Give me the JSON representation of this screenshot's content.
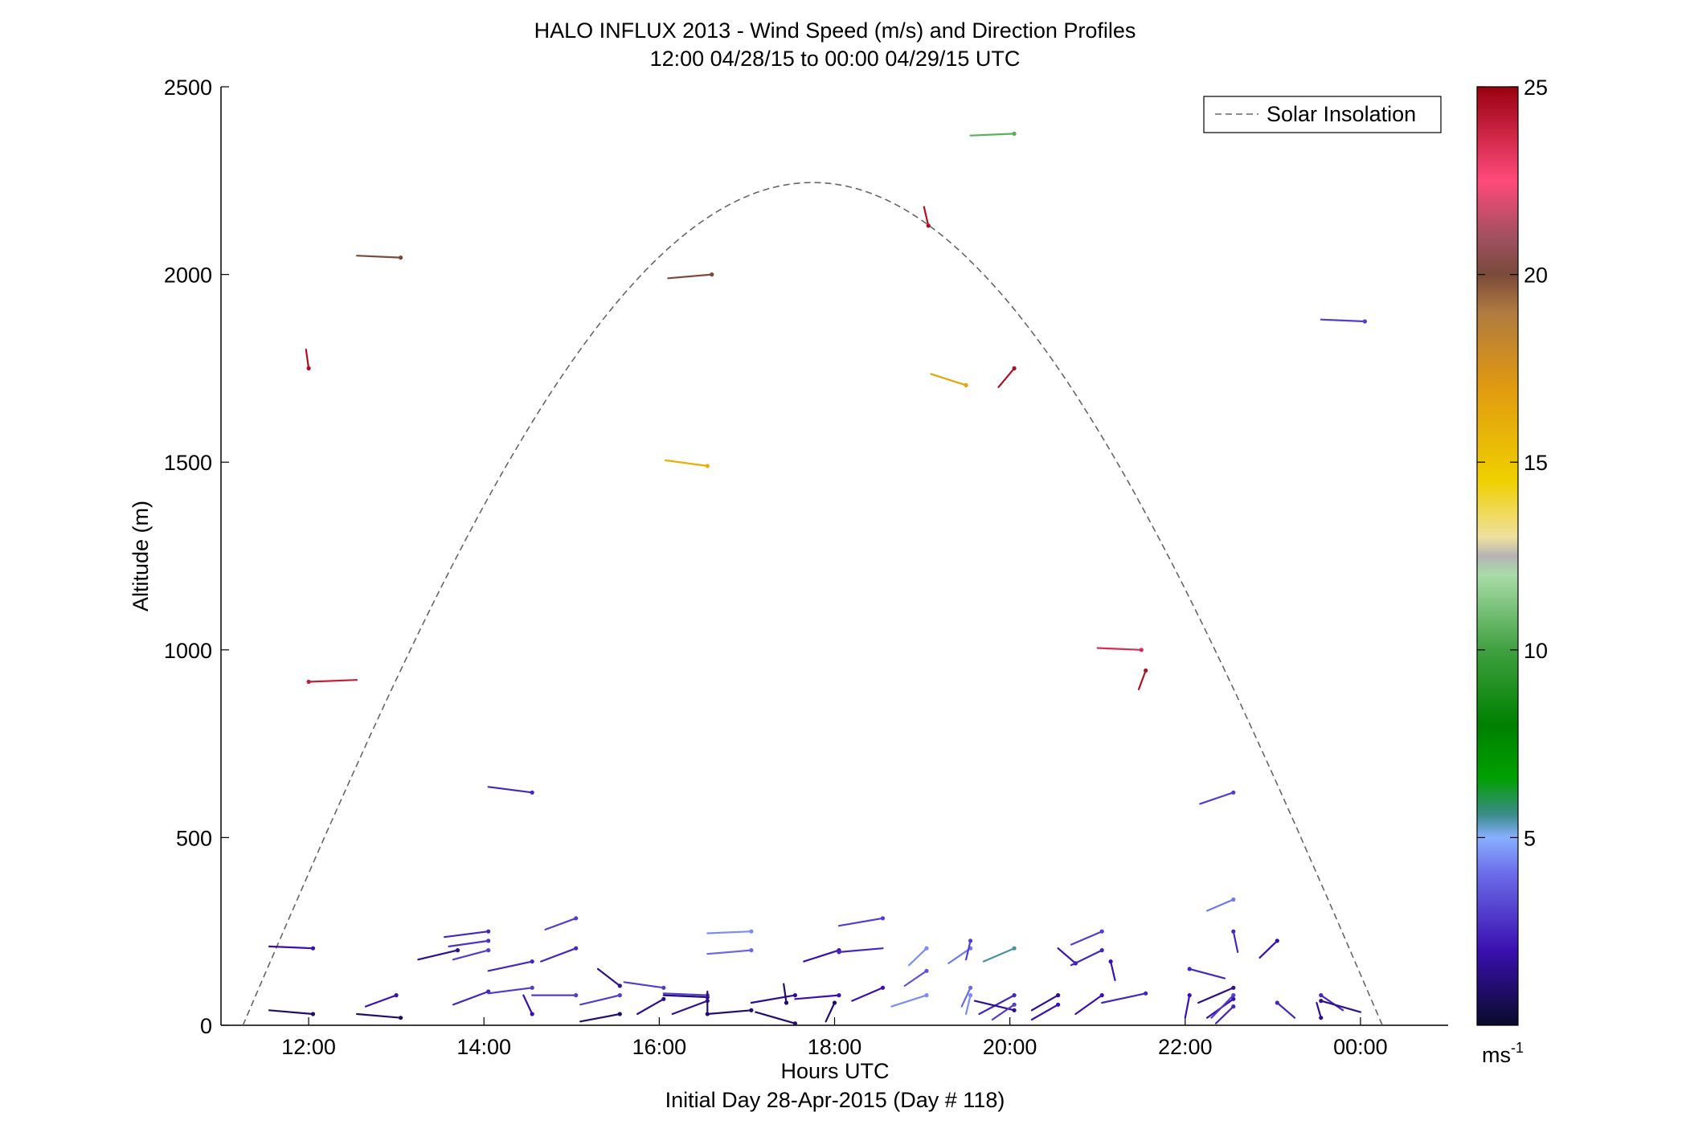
{
  "chart_data": {
    "type": "vector-profile",
    "title": "HALO INFLUX 2013 - Wind Speed (m/s) and Direction Profiles",
    "subtitle": "12:00 04/28/15 to 00:00 04/29/15  UTC",
    "xlabel": "Hours UTC",
    "xlabel2": "Initial Day 28-Apr-2015 (Day # 118)",
    "ylabel": "Altitude (m)",
    "xlim": [
      11.0,
      25.0
    ],
    "ylim": [
      0,
      2500
    ],
    "x_ticks": [
      {
        "value": 12,
        "label": "12:00"
      },
      {
        "value": 14,
        "label": "14:00"
      },
      {
        "value": 16,
        "label": "16:00"
      },
      {
        "value": 18,
        "label": "18:00"
      },
      {
        "value": 20,
        "label": "20:00"
      },
      {
        "value": 22,
        "label": "22:00"
      },
      {
        "value": 24,
        "label": "00:00"
      }
    ],
    "y_ticks": [
      {
        "value": 0,
        "label": "0"
      },
      {
        "value": 500,
        "label": "500"
      },
      {
        "value": 1000,
        "label": "1000"
      },
      {
        "value": 1500,
        "label": "1500"
      },
      {
        "value": 2000,
        "label": "2000"
      },
      {
        "value": 2500,
        "label": "2500"
      }
    ],
    "legend": {
      "position": "top-right",
      "entries": [
        {
          "label": "Solar Insolation",
          "style": "dashed",
          "color": "#666666"
        }
      ]
    },
    "solar_curve": {
      "start_hour": 11.25,
      "end_hour": 24.25,
      "peak_hour": 17.75,
      "peak_altitude": 2245,
      "color": "#666666"
    },
    "colorbar": {
      "range": [
        0,
        25
      ],
      "ticks": [
        {
          "value": 5,
          "label": "5"
        },
        {
          "value": 10,
          "label": "10"
        },
        {
          "value": 15,
          "label": "15"
        },
        {
          "value": 20,
          "label": "20"
        },
        {
          "value": 25,
          "label": "25"
        }
      ],
      "unit_label": "ms",
      "unit_exponent": "-1",
      "stops": [
        {
          "value": 0,
          "color": "#0a0a2a"
        },
        {
          "value": 2,
          "color": "#3a10b0"
        },
        {
          "value": 4,
          "color": "#6a6ae8"
        },
        {
          "value": 5,
          "color": "#88b0ff"
        },
        {
          "value": 5.6,
          "color": "#3c8c8c"
        },
        {
          "value": 6.6,
          "color": "#00a000"
        },
        {
          "value": 8,
          "color": "#008000"
        },
        {
          "value": 10,
          "color": "#40a040"
        },
        {
          "value": 12,
          "color": "#a8dca8"
        },
        {
          "value": 12.5,
          "color": "#b4b4b4"
        },
        {
          "value": 13,
          "color": "#f0e0a0"
        },
        {
          "value": 14.5,
          "color": "#f0d000"
        },
        {
          "value": 17,
          "color": "#e09a10"
        },
        {
          "value": 19,
          "color": "#b07a40"
        },
        {
          "value": 20,
          "color": "#7a4a3a"
        },
        {
          "value": 21,
          "color": "#a05060"
        },
        {
          "value": 22.5,
          "color": "#ff4a7a"
        },
        {
          "value": 25,
          "color": "#9a0010"
        }
      ]
    },
    "vectors": [
      {
        "t": 12.0,
        "z": 915,
        "dt": 0.55,
        "dz": 5,
        "speed": 24
      },
      {
        "t": 12.0,
        "z": 1750,
        "dt": -0.03,
        "dz": 50,
        "speed": 24.5
      },
      {
        "t": 13.05,
        "z": 2045,
        "dt": -0.5,
        "dz": 5,
        "speed": 20
      },
      {
        "t": 16.6,
        "z": 2000,
        "dt": -0.5,
        "dz": -10,
        "speed": 20
      },
      {
        "t": 16.55,
        "z": 1490,
        "dt": -0.48,
        "dz": 15,
        "speed": 16
      },
      {
        "t": 14.55,
        "z": 620,
        "dt": -0.5,
        "dz": 15,
        "speed": 2.5
      },
      {
        "t": 19.07,
        "z": 2130,
        "dt": -0.05,
        "dz": 50,
        "speed": 24.5
      },
      {
        "t": 19.5,
        "z": 1705,
        "dt": -0.4,
        "dz": 30,
        "speed": 16.5
      },
      {
        "t": 20.05,
        "z": 1750,
        "dt": -0.18,
        "dz": -50,
        "speed": 24.5
      },
      {
        "t": 20.05,
        "z": 2375,
        "dt": -0.5,
        "dz": -5,
        "speed": 10.5
      },
      {
        "t": 21.5,
        "z": 1000,
        "dt": -0.5,
        "dz": 5,
        "speed": 23.5
      },
      {
        "t": 21.55,
        "z": 945,
        "dt": -0.08,
        "dz": -50,
        "speed": 24.5
      },
      {
        "t": 22.55,
        "z": 620,
        "dt": -0.38,
        "dz": -30,
        "speed": 3
      },
      {
        "t": 24.05,
        "z": 1875,
        "dt": -0.5,
        "dz": 5,
        "speed": 3
      },
      {
        "t": 22.55,
        "z": 335,
        "dt": -0.3,
        "dz": -30,
        "speed": 4.2
      },
      {
        "t": 12.05,
        "z": 205,
        "dt": -0.5,
        "dz": 5,
        "speed": 2
      },
      {
        "t": 12.05,
        "z": 30,
        "dt": -0.5,
        "dz": 10,
        "speed": 1
      },
      {
        "t": 13.0,
        "z": 80,
        "dt": -0.35,
        "dz": -30,
        "speed": 2
      },
      {
        "t": 13.05,
        "z": 20,
        "dt": -0.5,
        "dz": 10,
        "speed": 1
      },
      {
        "t": 13.7,
        "z": 200,
        "dt": -0.45,
        "dz": -25,
        "speed": 1.5
      },
      {
        "t": 14.05,
        "z": 250,
        "dt": -0.5,
        "dz": -15,
        "speed": 2.5
      },
      {
        "t": 14.05,
        "z": 225,
        "dt": -0.45,
        "dz": -15,
        "speed": 2.8
      },
      {
        "t": 14.05,
        "z": 200,
        "dt": -0.4,
        "dz": -25,
        "speed": 3
      },
      {
        "t": 14.05,
        "z": 90,
        "dt": -0.4,
        "dz": -35,
        "speed": 2.5
      },
      {
        "t": 14.55,
        "z": 170,
        "dt": -0.5,
        "dz": -25,
        "speed": 2.5
      },
      {
        "t": 14.55,
        "z": 100,
        "dt": -0.5,
        "dz": -15,
        "speed": 3
      },
      {
        "t": 14.55,
        "z": 30,
        "dt": -0.1,
        "dz": 50,
        "speed": 2
      },
      {
        "t": 15.05,
        "z": 285,
        "dt": -0.35,
        "dz": -30,
        "speed": 3
      },
      {
        "t": 15.05,
        "z": 205,
        "dt": -0.4,
        "dz": -35,
        "speed": 2.5
      },
      {
        "t": 15.05,
        "z": 80,
        "dt": -0.5,
        "dz": 0,
        "speed": 3
      },
      {
        "t": 15.55,
        "z": 105,
        "dt": -0.25,
        "dz": 45,
        "speed": 1.5
      },
      {
        "t": 15.55,
        "z": 80,
        "dt": -0.45,
        "dz": -25,
        "speed": 3
      },
      {
        "t": 15.55,
        "z": 30,
        "dt": -0.45,
        "dz": -20,
        "speed": 1
      },
      {
        "t": 16.05,
        "z": 100,
        "dt": -0.45,
        "dz": 15,
        "speed": 3
      },
      {
        "t": 16.05,
        "z": 70,
        "dt": -0.3,
        "dz": -40,
        "speed": 1.5
      },
      {
        "t": 16.55,
        "z": 75,
        "dt": -0.5,
        "dz": 5,
        "speed": 1.2
      },
      {
        "t": 16.55,
        "z": 80,
        "dt": -0.5,
        "dz": 5,
        "speed": 3
      },
      {
        "t": 16.55,
        "z": 65,
        "dt": -0.4,
        "dz": -35,
        "speed": 1.5
      },
      {
        "t": 16.55,
        "z": 30,
        "dt": 0,
        "dz": 60,
        "speed": 1.2
      },
      {
        "t": 17.05,
        "z": 250,
        "dt": -0.5,
        "dz": -5,
        "speed": 4.5
      },
      {
        "t": 17.05,
        "z": 200,
        "dt": -0.5,
        "dz": -10,
        "speed": 4
      },
      {
        "t": 17.05,
        "z": 40,
        "dt": -0.5,
        "dz": -10,
        "speed": 1
      },
      {
        "t": 17.55,
        "z": 80,
        "dt": -0.5,
        "dz": -20,
        "speed": 1.5
      },
      {
        "t": 17.55,
        "z": 5,
        "dt": -0.45,
        "dz": 30,
        "speed": 1
      },
      {
        "t": 17.45,
        "z": 60,
        "dt": -0.03,
        "dz": 50,
        "speed": 1
      },
      {
        "t": 18.05,
        "z": 200,
        "dt": -0.4,
        "dz": -30,
        "speed": 2
      },
      {
        "t": 18.05,
        "z": 195,
        "dt": 0.5,
        "dz": 10,
        "speed": 2.5
      },
      {
        "t": 18.05,
        "z": 80,
        "dt": -0.5,
        "dz": -10,
        "speed": 2
      },
      {
        "t": 18.0,
        "z": 60,
        "dt": -0.1,
        "dz": -50,
        "speed": 1
      },
      {
        "t": 18.55,
        "z": 285,
        "dt": -0.5,
        "dz": -20,
        "speed": 3
      },
      {
        "t": 18.55,
        "z": 100,
        "dt": -0.35,
        "dz": -35,
        "speed": 2
      },
      {
        "t": 19.05,
        "z": 205,
        "dt": -0.2,
        "dz": -45,
        "speed": 4.5
      },
      {
        "t": 19.05,
        "z": 145,
        "dt": -0.25,
        "dz": -40,
        "speed": 3.5
      },
      {
        "t": 19.05,
        "z": 80,
        "dt": -0.4,
        "dz": -30,
        "speed": 4.5
      },
      {
        "t": 19.55,
        "z": 205,
        "dt": -0.25,
        "dz": -40,
        "speed": 4.2
      },
      {
        "t": 19.55,
        "z": 225,
        "dt": -0.05,
        "dz": -50,
        "speed": 3
      },
      {
        "t": 19.55,
        "z": 100,
        "dt": -0.1,
        "dz": -50,
        "speed": 4
      },
      {
        "t": 19.55,
        "z": 80,
        "dt": -0.05,
        "dz": -50,
        "speed": 4.5
      },
      {
        "t": 20.05,
        "z": 205,
        "dt": -0.35,
        "dz": -35,
        "speed": 5.5
      },
      {
        "t": 20.05,
        "z": 80,
        "dt": -0.4,
        "dz": -50,
        "speed": 2.5
      },
      {
        "t": 20.05,
        "z": 40,
        "dt": -0.45,
        "dz": 25,
        "speed": 1.5
      },
      {
        "t": 20.05,
        "z": 55,
        "dt": -0.25,
        "dz": -40,
        "speed": 3
      },
      {
        "t": 20.55,
        "z": 80,
        "dt": -0.3,
        "dz": -40,
        "speed": 1.5
      },
      {
        "t": 20.55,
        "z": 55,
        "dt": -0.3,
        "dz": -40,
        "speed": 2
      },
      {
        "t": 20.75,
        "z": 165,
        "dt": -0.2,
        "dz": 40,
        "speed": 2
      },
      {
        "t": 21.05,
        "z": 250,
        "dt": -0.35,
        "dz": -35,
        "speed": 3
      },
      {
        "t": 21.05,
        "z": 200,
        "dt": -0.35,
        "dz": -40,
        "speed": 2.5
      },
      {
        "t": 21.05,
        "z": 80,
        "dt": -0.3,
        "dz": -50,
        "speed": 2
      },
      {
        "t": 21.15,
        "z": 170,
        "dt": 0.05,
        "dz": -50,
        "speed": 2
      },
      {
        "t": 21.55,
        "z": 85,
        "dt": -0.5,
        "dz": -25,
        "speed": 2.5
      },
      {
        "t": 22.05,
        "z": 80,
        "dt": -0.05,
        "dz": -60,
        "speed": 2
      },
      {
        "t": 22.05,
        "z": 150,
        "dt": 0.4,
        "dz": -25,
        "speed": 2.5
      },
      {
        "t": 22.55,
        "z": 250,
        "dt": 0.05,
        "dz": -55,
        "speed": 2.5
      },
      {
        "t": 22.55,
        "z": 100,
        "dt": -0.4,
        "dz": -40,
        "speed": 1.5
      },
      {
        "t": 22.55,
        "z": 70,
        "dt": -0.3,
        "dz": -50,
        "speed": 2
      },
      {
        "t": 22.55,
        "z": 50,
        "dt": -0.2,
        "dz": -45,
        "speed": 2.5
      },
      {
        "t": 22.55,
        "z": 80,
        "dt": -0.25,
        "dz": -60,
        "speed": 3
      },
      {
        "t": 23.05,
        "z": 225,
        "dt": -0.2,
        "dz": -45,
        "speed": 2
      },
      {
        "t": 23.05,
        "z": 60,
        "dt": 0.2,
        "dz": -40,
        "speed": 2.5
      },
      {
        "t": 23.55,
        "z": 80,
        "dt": 0.25,
        "dz": -40,
        "speed": 2.5
      },
      {
        "t": 23.55,
        "z": 65,
        "dt": 0.45,
        "dz": -30,
        "speed": 1.5
      },
      {
        "t": 23.55,
        "z": 20,
        "dt": -0.05,
        "dz": 40,
        "speed": 1.5
      }
    ]
  }
}
